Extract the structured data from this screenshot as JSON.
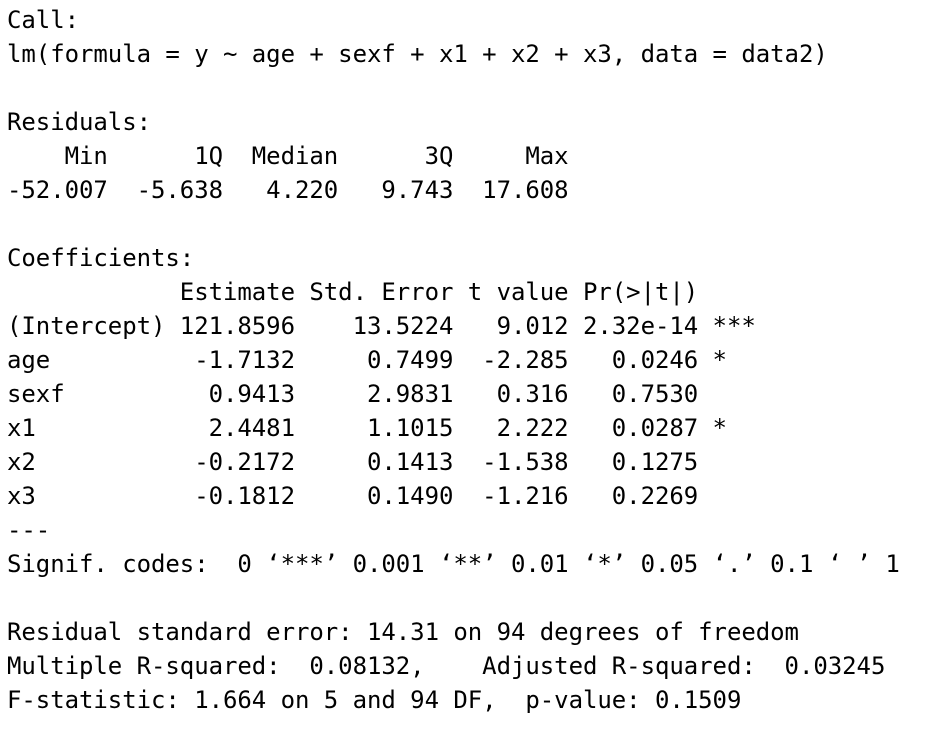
{
  "call": {
    "label": "Call:",
    "formula": "lm(formula = y ~ age + sexf + x1 + x2 + x3, data = data2)"
  },
  "residuals": {
    "label": "Residuals:",
    "header": "    Min      1Q  Median      3Q     Max ",
    "values": "-52.007  -5.638   4.220   9.743  17.608 "
  },
  "coefficients": {
    "label": "Coefficients:",
    "header": "            Estimate Std. Error t value Pr(>|t|)    ",
    "rows": [
      "(Intercept) 121.8596    13.5224   9.012 2.32e-14 ***",
      "age          -1.7132     0.7499  -2.285   0.0246 *  ",
      "sexf          0.9413     2.9831   0.316   0.7530    ",
      "x1            2.4481     1.1015   2.222   0.0287 *  ",
      "x2           -0.2172     0.1413  -1.538   0.1275    ",
      "x3           -0.1812     0.1490  -1.216   0.2269    "
    ],
    "separator": "---",
    "signif_codes": "Signif. codes:  0 ‘***’ 0.001 ‘**’ 0.01 ‘*’ 0.05 ‘.’ 0.1 ‘ ’ 1"
  },
  "summary": {
    "residual_se": "Residual standard error: 14.31 on 94 degrees of freedom",
    "r_squared": "Multiple R-squared:  0.08132,    Adjusted R-squared:  0.03245 ",
    "f_statistic": "F-statistic: 1.664 on 5 and 94 DF,  p-value: 0.1509"
  }
}
